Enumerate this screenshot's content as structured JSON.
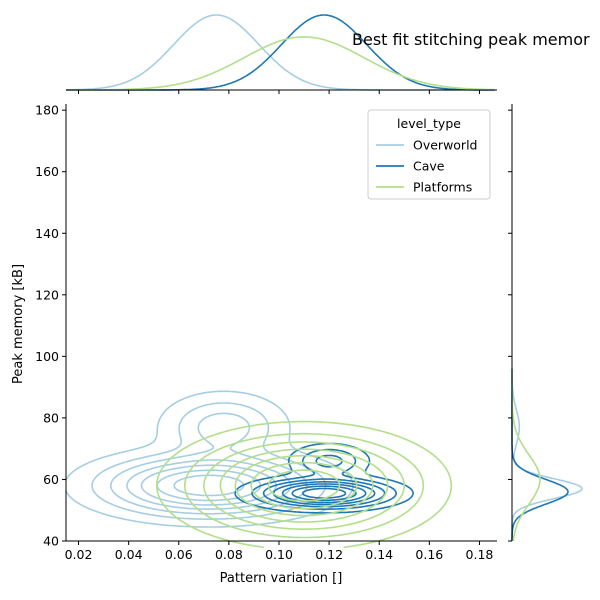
{
  "chart_data": {
    "type": "kde-joint",
    "title": "Best fit stitching peak memor",
    "xlabel": "Pattern variation []",
    "ylabel": "Peak memory [kB]",
    "xlim": [
      0.015,
      0.187
    ],
    "ylim": [
      40,
      182
    ],
    "xticks": [
      "0.02",
      "0.04",
      "0.06",
      "0.08",
      "0.10",
      "0.12",
      "0.14",
      "0.16",
      "0.18"
    ],
    "yticks": [
      "40",
      "60",
      "80",
      "100",
      "120",
      "140",
      "160",
      "180"
    ],
    "legend": {
      "title": "level_type",
      "placement": "top-right",
      "entries": [
        "Overworld",
        "Cave",
        "Platforms"
      ]
    },
    "series": [
      {
        "name": "Overworld",
        "color": "#a6cee3",
        "clusters": [
          {
            "cx": 0.072,
            "cy": 58,
            "sx": 0.0235,
            "sy": 5.5,
            "w": 1.0
          },
          {
            "cx": 0.078,
            "cy": 77,
            "sx": 0.0135,
            "sy": 6.0,
            "w": 0.33
          }
        ],
        "marginal_x": {
          "mu": [
            0.075
          ],
          "sd": [
            0.017
          ],
          "w": [
            1
          ]
        },
        "marginal_y": {
          "mu": [
            57,
            77
          ],
          "sd": [
            3.2,
            5.5
          ],
          "w": [
            1,
            0.18
          ]
        }
      },
      {
        "name": "Cave",
        "color": "#1f78b4",
        "clusters": [
          {
            "cx": 0.118,
            "cy": 55.5,
            "sx": 0.0145,
            "sy": 2.6,
            "w": 1.0
          },
          {
            "cx": 0.12,
            "cy": 66,
            "sx": 0.0085,
            "sy": 3.0,
            "w": 0.3
          }
        ],
        "marginal_x": {
          "mu": [
            0.118
          ],
          "sd": [
            0.017
          ],
          "w": [
            1
          ]
        },
        "marginal_y": {
          "mu": [
            56
          ],
          "sd": [
            4.0
          ],
          "w": [
            1
          ]
        }
      },
      {
        "name": "Platforms",
        "color": "#b2df8a",
        "clusters": [
          {
            "cx": 0.11,
            "cy": 58,
            "sx": 0.024,
            "sy": 8.5,
            "w": 1.0
          }
        ],
        "marginal_x": {
          "mu": [
            0.11
          ],
          "sd": [
            0.024
          ],
          "w": [
            1
          ]
        },
        "marginal_y": {
          "mu": [
            60
          ],
          "sd": [
            8.0
          ],
          "w": [
            1
          ]
        }
      }
    ],
    "contour_levels": [
      0.05,
      0.14,
      0.25,
      0.38,
      0.52,
      0.68,
      0.84
    ]
  }
}
